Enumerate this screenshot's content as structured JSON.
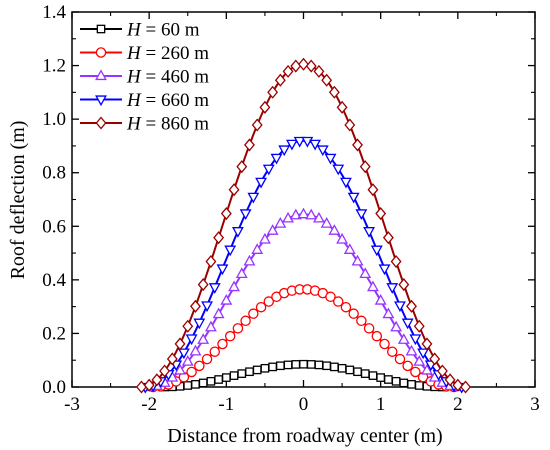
{
  "chart_data": {
    "type": "line",
    "title": "",
    "xlabel": "Distance from roadway center (m)",
    "ylabel": "Roof deflection (m)",
    "xlim": [
      -3,
      3
    ],
    "ylim": [
      0,
      1.4
    ],
    "xticks": [
      -3,
      -2,
      -1,
      0,
      1,
      2,
      3
    ],
    "yticks": [
      0.0,
      0.2,
      0.4,
      0.6,
      0.8,
      1.0,
      1.2,
      1.4
    ],
    "xtick_labels": [
      "-3",
      "-2",
      "-1",
      "0",
      "1",
      "2",
      "3"
    ],
    "ytick_labels": [
      "0.0",
      "0.2",
      "0.4",
      "0.6",
      "0.8",
      "1.0",
      "1.2",
      "1.4"
    ],
    "legend_position": "top-left",
    "grid": false,
    "series": [
      {
        "name": "H = 60 m",
        "legend_var": "H",
        "legend_rest": " = 60 m",
        "color": "#000000",
        "marker": "square",
        "half_width": 1.8,
        "peak": 0.085
      },
      {
        "name": "H = 260 m",
        "legend_var": "H",
        "legend_rest": " = 260 m",
        "color": "#ff0000",
        "marker": "circle",
        "half_width": 1.95,
        "peak": 0.365
      },
      {
        "name": "H = 460 m",
        "legend_var": "H",
        "legend_rest": " = 460 m",
        "color": "#9933ff",
        "marker": "triangle-up",
        "half_width": 2.0,
        "peak": 0.645
      },
      {
        "name": "H = 660 m",
        "legend_var": "H",
        "legend_rest": " = 660 m",
        "color": "#0000ff",
        "marker": "triangle-down",
        "half_width": 2.05,
        "peak": 0.92
      },
      {
        "name": "H = 860 m",
        "legend_var": "H",
        "legend_rest": " = 860 m",
        "color": "#990000",
        "marker": "diamond",
        "half_width": 2.1,
        "peak": 1.205
      }
    ]
  }
}
